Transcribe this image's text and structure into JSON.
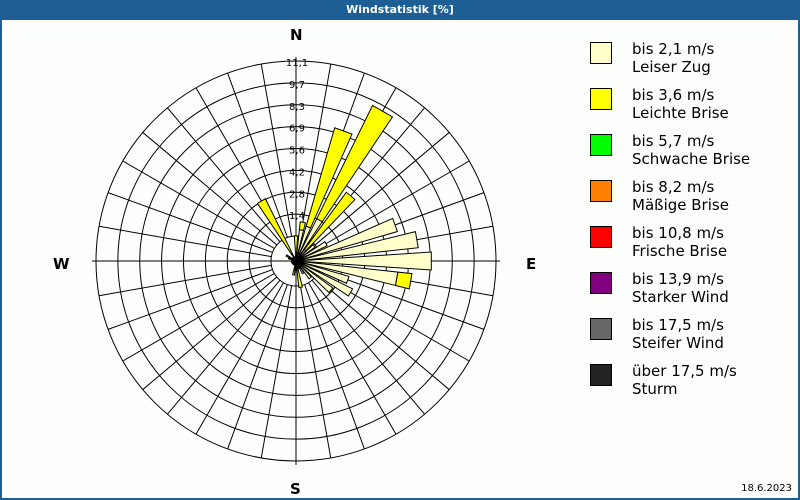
{
  "header": {
    "title": "Windstatistik [%]"
  },
  "compass": {
    "n": "N",
    "e": "E",
    "s": "S",
    "w": "W"
  },
  "footer": {
    "date": "18.6.2023"
  },
  "colors": {
    "titlebar": "#1d5f94",
    "grid": "#000000"
  },
  "legend": [
    {
      "range": "bis 2,1 m/s",
      "name": "Leiser Zug",
      "color": "#ffffcc"
    },
    {
      "range": "bis 3,6 m/s",
      "name": "Leichte Brise",
      "color": "#ffff00"
    },
    {
      "range": "bis 5,7 m/s",
      "name": "Schwache Brise",
      "color": "#00ff00"
    },
    {
      "range": "bis 8,2 m/s",
      "name": "Mäßige Brise",
      "color": "#ff8000"
    },
    {
      "range": "bis 10,8 m/s",
      "name": "Frische Brise",
      "color": "#ff0000"
    },
    {
      "range": "bis 13,9 m/s",
      "name": "Starker Wind",
      "color": "#800080"
    },
    {
      "range": "bis 17,5 m/s",
      "name": "Steifer Wind",
      "color": "#666666"
    },
    {
      "range": "über 17,5 m/s",
      "name": "Sturm",
      "color": "#222222"
    }
  ],
  "chart_data": {
    "type": "wind-rose",
    "title": "Windstatistik [%]",
    "radial_ticks": [
      "1,4",
      "2,8",
      "4,2",
      "5,6",
      "6,9",
      "8,3",
      "9,7",
      "11,1"
    ],
    "radial_max": 11.1,
    "sector_width_deg": 10,
    "series_names": [
      "bis 2,1 m/s",
      "bis 3,6 m/s"
    ],
    "sectors": [
      {
        "dir": 0,
        "values": [
          0.5,
          1.1
        ]
      },
      {
        "dir": 10,
        "values": [
          2.0,
          0.5
        ]
      },
      {
        "dir": 20,
        "values": [
          2.3,
          6.5
        ]
      },
      {
        "dir": 30,
        "values": [
          3.0,
          8.0
        ]
      },
      {
        "dir": 40,
        "values": [
          0.9,
          4.5
        ]
      },
      {
        "dir": 50,
        "values": [
          1.5,
          0.0
        ]
      },
      {
        "dir": 60,
        "values": [
          2.2,
          0.0
        ]
      },
      {
        "dir": 70,
        "values": [
          6.7,
          0.0
        ]
      },
      {
        "dir": 80,
        "values": [
          7.8,
          0.0
        ]
      },
      {
        "dir": 90,
        "values": [
          8.6,
          0.0
        ]
      },
      {
        "dir": 100,
        "values": [
          6.5,
          0.9
        ]
      },
      {
        "dir": 110,
        "values": [
          3.5,
          0.0
        ]
      },
      {
        "dir": 120,
        "values": [
          4.0,
          0.0
        ]
      },
      {
        "dir": 130,
        "values": [
          2.9,
          0.0
        ]
      },
      {
        "dir": 140,
        "values": [
          1.4,
          0.0
        ]
      },
      {
        "dir": 150,
        "values": [
          0.9,
          0.0
        ]
      },
      {
        "dir": 160,
        "values": [
          0.5,
          0.0
        ]
      },
      {
        "dir": 170,
        "values": [
          0.6,
          1.1
        ]
      },
      {
        "dir": 180,
        "values": [
          0.2,
          0.0
        ]
      },
      {
        "dir": 190,
        "values": [
          0.3,
          0.6
        ]
      },
      {
        "dir": 200,
        "values": [
          0.0,
          0.0
        ]
      },
      {
        "dir": 210,
        "values": [
          0.0,
          0.0
        ]
      },
      {
        "dir": 220,
        "values": [
          0.0,
          0.0
        ]
      },
      {
        "dir": 230,
        "values": [
          0.0,
          0.0
        ]
      },
      {
        "dir": 240,
        "values": [
          0.0,
          0.0
        ]
      },
      {
        "dir": 250,
        "values": [
          0.0,
          0.0
        ]
      },
      {
        "dir": 260,
        "values": [
          0.0,
          0.3
        ]
      },
      {
        "dir": 270,
        "values": [
          0.0,
          0.0
        ]
      },
      {
        "dir": 280,
        "values": [
          0.0,
          0.0
        ]
      },
      {
        "dir": 290,
        "values": [
          0.1,
          0.4
        ]
      },
      {
        "dir": 300,
        "values": [
          0.2,
          0.5
        ]
      },
      {
        "dir": 310,
        "values": [
          0.0,
          0.0
        ]
      },
      {
        "dir": 320,
        "values": [
          0.0,
          0.0
        ]
      },
      {
        "dir": 330,
        "values": [
          0.5,
          3.9
        ]
      },
      {
        "dir": 340,
        "values": [
          0.0,
          0.0
        ]
      },
      {
        "dir": 350,
        "values": [
          0.0,
          0.0
        ]
      }
    ]
  }
}
